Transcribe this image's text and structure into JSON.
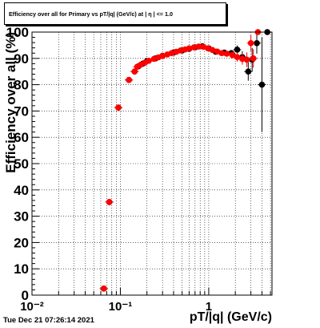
{
  "title": "Efficiency over all for Primary vs pT/|q| (GeV/c) at | η | <= 1.0",
  "timestamp": "Tue Dec 21 07:26:14 2021",
  "chart_data": {
    "type": "scatter",
    "xlabel": "pT/|q| (GeV/c)",
    "ylabel": "Efficiency over all (%)",
    "xscale": "log",
    "xlim": [
      0.01,
      5.2
    ],
    "ylim": [
      0,
      100
    ],
    "grid": true,
    "x_tick_labels": [
      "10⁻²",
      "10⁻¹",
      "1"
    ],
    "y_tick_labels": [
      "0",
      "10",
      "20",
      "30",
      "40",
      "50",
      "60",
      "70",
      "80",
      "90",
      "100"
    ],
    "colors": {
      "black_series": "#000000",
      "red_series": "#ff0000"
    },
    "series": [
      {
        "color": "#000000",
        "points": [
          {
            "x": 0.065,
            "y": 2.5,
            "yerr": 0.8
          },
          {
            "x": 0.075,
            "y": 35.4,
            "yerr": 1.2
          },
          {
            "x": 0.095,
            "y": 71.3,
            "yerr": 1.2
          },
          {
            "x": 0.125,
            "y": 81.8,
            "yerr": 0.8
          },
          {
            "x": 0.145,
            "y": 85.0,
            "yerr": 0.8
          },
          {
            "x": 0.16,
            "y": 87.0,
            "yerr": 0.6
          },
          {
            "x": 0.18,
            "y": 88.0,
            "yerr": 0.5
          },
          {
            "x": 0.2,
            "y": 89.0,
            "yerr": 0.5
          },
          {
            "x": 0.25,
            "y": 90.0,
            "yerr": 0.4
          },
          {
            "x": 0.3,
            "y": 91.0,
            "yerr": 0.4
          },
          {
            "x": 0.4,
            "y": 92.2,
            "yerr": 0.4
          },
          {
            "x": 0.5,
            "y": 93.0,
            "yerr": 0.4
          },
          {
            "x": 0.6,
            "y": 93.6,
            "yerr": 0.4
          },
          {
            "x": 0.7,
            "y": 94.2,
            "yerr": 0.4
          },
          {
            "x": 0.85,
            "y": 94.6,
            "yerr": 0.4
          },
          {
            "x": 1.0,
            "y": 93.8,
            "yerr": 0.5
          },
          {
            "x": 1.2,
            "y": 92.5,
            "yerr": 0.7
          },
          {
            "x": 1.5,
            "y": 92.2,
            "yerr": 0.9
          },
          {
            "x": 1.8,
            "y": 92.0,
            "yerr": 1.2
          },
          {
            "x": 2.1,
            "y": 93.3,
            "yerr": 1.6
          },
          {
            "x": 2.4,
            "y": 90.5,
            "yerr": 2.2
          },
          {
            "x": 2.8,
            "y": 85.0,
            "yerr": 3.5
          },
          {
            "x": 3.1,
            "y": 89.5,
            "yerr": 4.5
          },
          {
            "x": 3.5,
            "y": 95.8,
            "yerr": 4.0
          },
          {
            "x": 4.0,
            "y": 80.0,
            "yerr": 18.0
          },
          {
            "x": 4.6,
            "y": 100.0,
            "yerr": 0
          }
        ]
      },
      {
        "color": "#ff0000",
        "points": [
          {
            "x": 0.065,
            "y": 2.5,
            "yerr": 0.8
          },
          {
            "x": 0.075,
            "y": 35.4,
            "yerr": 1.2
          },
          {
            "x": 0.095,
            "y": 71.3,
            "yerr": 1.2
          },
          {
            "x": 0.125,
            "y": 81.8,
            "yerr": 0.8
          },
          {
            "x": 0.145,
            "y": 85.0,
            "yerr": 0.8
          },
          {
            "x": 0.155,
            "y": 86.8,
            "yerr": 0.6
          },
          {
            "x": 0.17,
            "y": 87.6,
            "yerr": 0.5
          },
          {
            "x": 0.19,
            "y": 88.4,
            "yerr": 0.5
          },
          {
            "x": 0.21,
            "y": 89.1,
            "yerr": 0.5
          },
          {
            "x": 0.24,
            "y": 89.8,
            "yerr": 0.4
          },
          {
            "x": 0.27,
            "y": 90.4,
            "yerr": 0.4
          },
          {
            "x": 0.3,
            "y": 90.9,
            "yerr": 0.4
          },
          {
            "x": 0.34,
            "y": 91.5,
            "yerr": 0.4
          },
          {
            "x": 0.38,
            "y": 92.0,
            "yerr": 0.4
          },
          {
            "x": 0.43,
            "y": 92.5,
            "yerr": 0.4
          },
          {
            "x": 0.48,
            "y": 93.0,
            "yerr": 0.4
          },
          {
            "x": 0.54,
            "y": 93.4,
            "yerr": 0.4
          },
          {
            "x": 0.6,
            "y": 93.8,
            "yerr": 0.4
          },
          {
            "x": 0.68,
            "y": 94.2,
            "yerr": 0.4
          },
          {
            "x": 0.77,
            "y": 94.5,
            "yerr": 0.4
          },
          {
            "x": 0.87,
            "y": 94.4,
            "yerr": 0.4
          },
          {
            "x": 0.98,
            "y": 93.8,
            "yerr": 0.5
          },
          {
            "x": 1.1,
            "y": 93.2,
            "yerr": 0.6
          },
          {
            "x": 1.25,
            "y": 92.6,
            "yerr": 0.7
          },
          {
            "x": 1.4,
            "y": 92.0,
            "yerr": 0.8
          },
          {
            "x": 1.6,
            "y": 91.8,
            "yerr": 1.0
          },
          {
            "x": 1.85,
            "y": 91.3,
            "yerr": 1.3
          },
          {
            "x": 2.1,
            "y": 90.5,
            "yerr": 1.7
          },
          {
            "x": 2.4,
            "y": 89.8,
            "yerr": 2.2
          },
          {
            "x": 2.7,
            "y": 89.5,
            "yerr": 2.8
          },
          {
            "x": 3.0,
            "y": 95.8,
            "yerr": 3.0
          },
          {
            "x": 3.2,
            "y": 90.0,
            "yerr": 3.5
          },
          {
            "x": 3.6,
            "y": 100.0,
            "yerr": 0
          }
        ]
      }
    ]
  }
}
